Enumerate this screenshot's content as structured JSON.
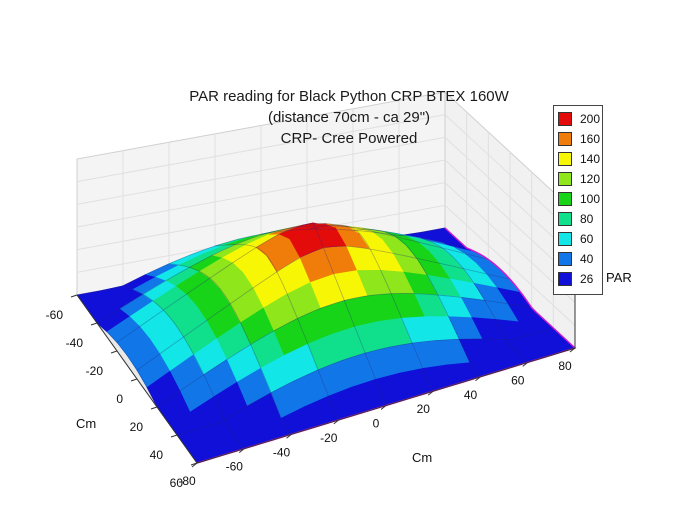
{
  "chart_data": {
    "type": "surface-3d",
    "title": "PAR reading for Black Python CRP BTEX 160W",
    "subtitle_lines": [
      "(distance 70cm - ca 29\")",
      "CRP- Cree Powered"
    ],
    "xlabel": "Cm",
    "ylabel": "Cm",
    "zlabel": "PAR",
    "x_ticks": [
      -80,
      -60,
      -40,
      -20,
      0,
      20,
      40,
      60,
      80
    ],
    "y_ticks": [
      -60,
      -40,
      -20,
      0,
      20,
      40,
      60
    ],
    "legend_position": "right",
    "color_levels": [
      {
        "label": "200",
        "color": "#e40b0b"
      },
      {
        "label": "160",
        "color": "#f07d0a"
      },
      {
        "label": "140",
        "color": "#f7f705"
      },
      {
        "label": "120",
        "color": "#8ee61b"
      },
      {
        "label": "100",
        "color": "#18d418"
      },
      {
        "label": "80",
        "color": "#10e08c"
      },
      {
        "label": "60",
        "color": "#12e6e6"
      },
      {
        "label": "40",
        "color": "#1177e8"
      },
      {
        "label": "26",
        "color": "#1010d8"
      }
    ],
    "grid": true
  }
}
